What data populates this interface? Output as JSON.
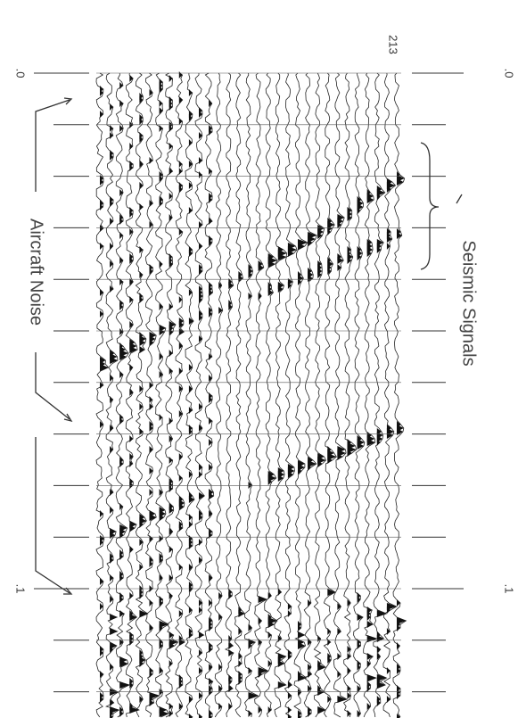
{
  "figure": {
    "trace_label": "213",
    "time_labels_left": [
      ".0",
      ".1"
    ],
    "time_labels_right": [
      ".0",
      ".1"
    ],
    "annotations": {
      "aircraft_noise": "Aircraft Noise",
      "seismic_signals": "Seismic Signals"
    }
  }
}
